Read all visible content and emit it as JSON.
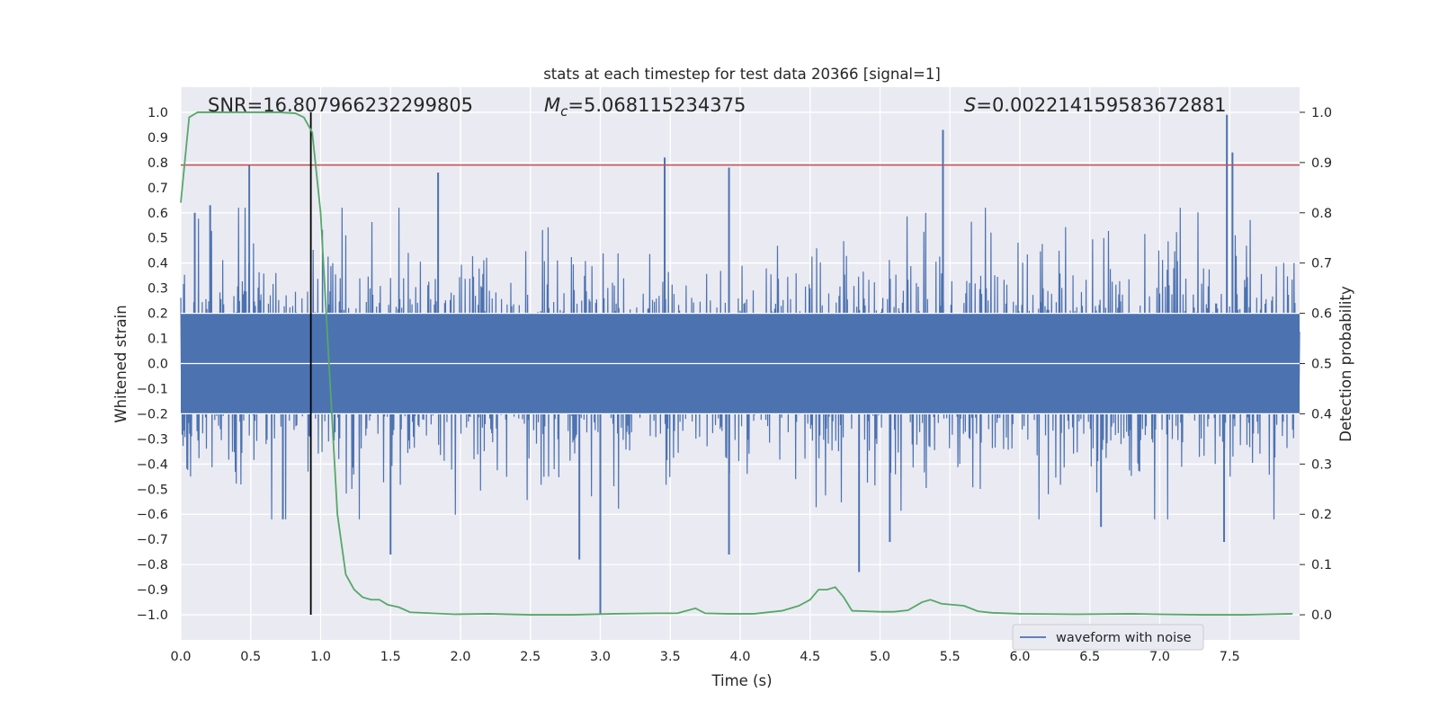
{
  "chart_data": {
    "type": "line",
    "title": "stats at each timestep for test data 20366 [signal=1]",
    "xlabel": "Time (s)",
    "ylabel": "Whitened strain",
    "y2label": "Detection probability",
    "xlim": [
      0.0,
      8.0
    ],
    "ylim": [
      -1.1,
      1.1
    ],
    "y2lim": [
      -0.05,
      1.05
    ],
    "x_ticks": [
      "0.0",
      "0.5",
      "1.0",
      "1.5",
      "2.0",
      "2.5",
      "3.0",
      "3.5",
      "4.0",
      "4.5",
      "5.0",
      "5.5",
      "6.0",
      "6.5",
      "7.0",
      "7.5"
    ],
    "y_ticks": [
      "1.0",
      "0.9",
      "0.8",
      "0.7",
      "0.6",
      "0.5",
      "0.4",
      "0.3",
      "0.2",
      "0.1",
      "0.0",
      "-0.1",
      "-0.2",
      "-0.3",
      "-0.4",
      "-0.5",
      "-0.6",
      "-0.7",
      "-0.8",
      "-0.9",
      "-1.0"
    ],
    "y2_ticks": [
      "1.0",
      "0.9",
      "0.8",
      "0.7",
      "0.6",
      "0.5",
      "0.4",
      "0.3",
      "0.2",
      "0.1",
      "0.0"
    ],
    "annotations": {
      "snr": "SNR=16.807966232299805",
      "mc_symbol": "M",
      "mc_sub": "c",
      "mc_value": "=5.068115234375",
      "s_symbol": "S",
      "s_value": "=0.002214159583672881"
    },
    "threshold_y": 0.79,
    "event_time": 0.93,
    "series": [
      {
        "name": "waveform with noise",
        "color": "#4c72b0",
        "kind": "noisy_strain",
        "core_amplitude": 0.2,
        "peak_spikes": [
          {
            "x": 0.1,
            "y": 0.6
          },
          {
            "x": 0.21,
            "y": 0.63
          },
          {
            "x": 0.49,
            "y": 0.79
          },
          {
            "x": 0.73,
            "y": -0.62
          },
          {
            "x": 1.84,
            "y": 0.76
          },
          {
            "x": 1.5,
            "y": -0.76
          },
          {
            "x": 3.0,
            "y": -1.0
          },
          {
            "x": 2.85,
            "y": -0.78
          },
          {
            "x": 3.46,
            "y": 0.82
          },
          {
            "x": 3.92,
            "y": 0.78
          },
          {
            "x": 3.92,
            "y": -0.76
          },
          {
            "x": 4.85,
            "y": -0.83
          },
          {
            "x": 5.45,
            "y": 0.93
          },
          {
            "x": 5.07,
            "y": -0.71
          },
          {
            "x": 7.48,
            "y": 0.99
          },
          {
            "x": 7.52,
            "y": 0.84
          },
          {
            "x": 7.46,
            "y": -0.71
          },
          {
            "x": 6.58,
            "y": -0.65
          }
        ]
      },
      {
        "name": "detection probability",
        "color": "#55a868",
        "axis": "right",
        "x": [
          0.0,
          0.06,
          0.12,
          0.2,
          0.3,
          0.5,
          0.7,
          0.82,
          0.88,
          0.94,
          1.0,
          1.06,
          1.12,
          1.18,
          1.24,
          1.3,
          1.36,
          1.42,
          1.48,
          1.56,
          1.64,
          1.8,
          1.96,
          2.2,
          2.5,
          2.8,
          3.1,
          3.4,
          3.55,
          3.68,
          3.75,
          3.9,
          4.1,
          4.3,
          4.42,
          4.5,
          4.56,
          4.62,
          4.68,
          4.74,
          4.8,
          4.9,
          5.0,
          5.1,
          5.2,
          5.3,
          5.36,
          5.44,
          5.52,
          5.6,
          5.7,
          5.8,
          6.0,
          6.4,
          6.8,
          7.0,
          7.3,
          7.6,
          7.95
        ],
        "y": [
          0.82,
          0.99,
          1.0,
          1.0,
          1.0,
          1.0,
          1.0,
          0.998,
          0.99,
          0.96,
          0.8,
          0.5,
          0.2,
          0.08,
          0.05,
          0.035,
          0.03,
          0.03,
          0.02,
          0.015,
          0.005,
          0.003,
          0.001,
          0.002,
          0.0,
          0.0,
          0.002,
          0.003,
          0.003,
          0.013,
          0.003,
          0.002,
          0.002,
          0.008,
          0.018,
          0.03,
          0.05,
          0.05,
          0.055,
          0.035,
          0.008,
          0.007,
          0.006,
          0.006,
          0.009,
          0.025,
          0.03,
          0.022,
          0.02,
          0.018,
          0.007,
          0.004,
          0.002,
          0.001,
          0.002,
          0.001,
          0.0,
          0.0,
          0.002
        ]
      },
      {
        "name": "threshold",
        "color": "#c44e52"
      }
    ]
  }
}
